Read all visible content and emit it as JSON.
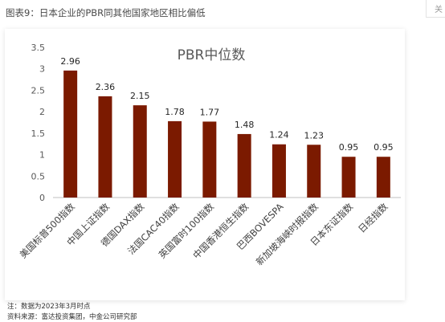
{
  "header_title": "图表9：日本企业的PBR同其他国家地区相比偏低",
  "corner_tab": "关",
  "footnote": "注：数据为2023年3月时点",
  "source": "资料来源：富达投资集团，中金公司研究部",
  "colors": {
    "bar": "#7B1A00"
  },
  "chart_data": {
    "type": "bar",
    "title": "PBR中位数",
    "categories": [
      "美国标普500指数",
      "中国上证指数",
      "德国DAX指数",
      "法国CAC40指数",
      "英国富时100指数",
      "中国香港恒生指数",
      "巴西BOVESPA",
      "新加坡海峡时报指数",
      "日本东证指数",
      "日经指数"
    ],
    "values": [
      2.96,
      2.36,
      2.15,
      1.78,
      1.77,
      1.48,
      1.24,
      1.23,
      0.95,
      0.95
    ],
    "value_labels": [
      "2.96",
      "2.36",
      "2.15",
      "1.78",
      "1.77",
      "1.48",
      "1.24",
      "1.23",
      "0.95",
      "0.95"
    ],
    "ylim": [
      0,
      3.5
    ],
    "yticks": [
      "0",
      "0.5",
      "1",
      "1.5",
      "2",
      "2.5",
      "3",
      "3.5"
    ],
    "xlabel": "",
    "ylabel": "",
    "grid": false,
    "legend": "none"
  }
}
